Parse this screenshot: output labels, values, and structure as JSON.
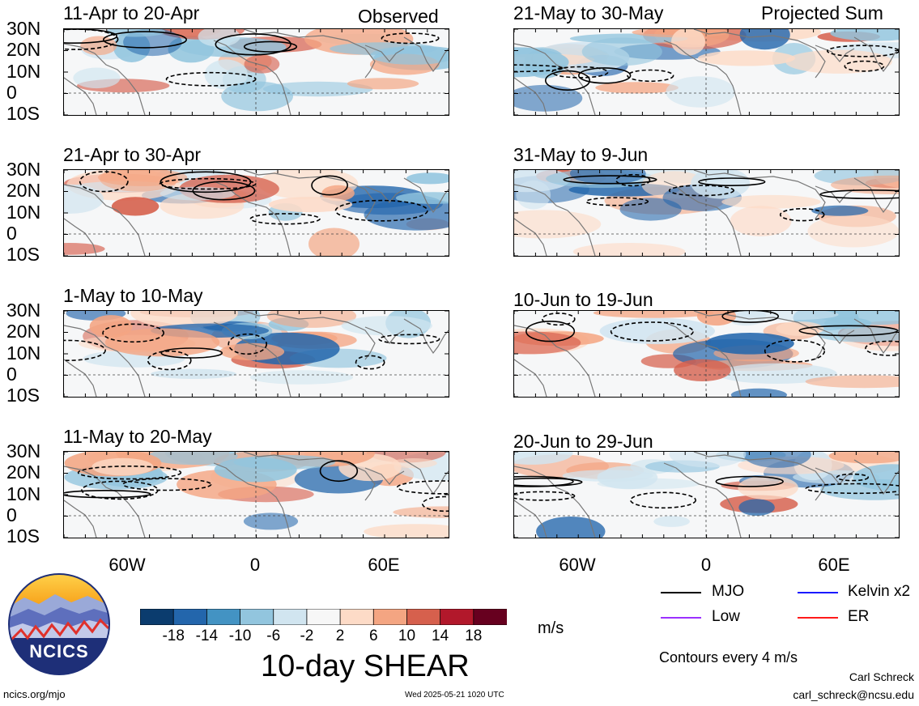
{
  "corner_labels": {
    "left": "Observed",
    "right": "Projected Sum"
  },
  "panels": [
    {
      "title": "11-Apr to 20-Apr"
    },
    {
      "title": "21-Apr to 30-Apr"
    },
    {
      "title": "1-May to 10-May"
    },
    {
      "title": "11-May to 20-May"
    },
    {
      "title": "21-May to 30-May"
    },
    {
      "title": "31-May to 9-Jun"
    },
    {
      "title": "10-Jun to 19-Jun"
    },
    {
      "title": "20-Jun to 29-Jun"
    }
  ],
  "lat_ticks": [
    "30N",
    "20N",
    "10N",
    "0",
    "10S"
  ],
  "lon_ticks": [
    "60W",
    "0",
    "60E"
  ],
  "colorbar": {
    "colors": [
      "#0b3c6e",
      "#2366ac",
      "#4393c3",
      "#92c5de",
      "#d1e5f0",
      "#f7f7f7",
      "#fddbc7",
      "#f4a582",
      "#d6604d",
      "#b2182b",
      "#67001f"
    ],
    "labels": [
      "-18",
      "-14",
      "-10",
      "-6",
      "-2",
      "2",
      "6",
      "10",
      "14",
      "18"
    ],
    "units": "m/s",
    "title": "10-day SHEAR"
  },
  "legend": {
    "items": [
      {
        "label": "MJO",
        "color": "#000000"
      },
      {
        "label": "Kelvin x2",
        "color": "#1a1aff"
      },
      {
        "label": "Low",
        "color": "#9b30ff"
      },
      {
        "label": "ER",
        "color": "#ff1a1a"
      }
    ],
    "note": "Contours every 4 m/s"
  },
  "footer": {
    "logo_text": "NCICS",
    "url": "ncics.org/mjo",
    "timestamp": "Wed 2025-05-21 1020 UTC",
    "author": "Carl Schreck",
    "email": "carl_schreck@ncsu.edu"
  }
}
